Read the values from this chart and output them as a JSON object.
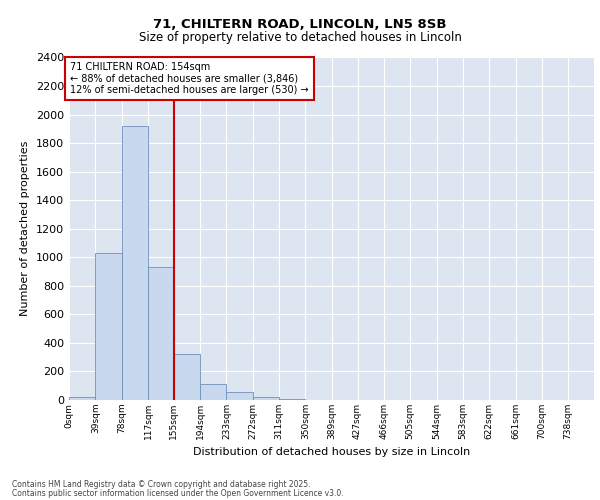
{
  "title1": "71, CHILTERN ROAD, LINCOLN, LN5 8SB",
  "title2": "Size of property relative to detached houses in Lincoln",
  "xlabel": "Distribution of detached houses by size in Lincoln",
  "ylabel": "Number of detached properties",
  "annotation_title": "71 CHILTERN ROAD: 154sqm",
  "annotation_line1": "← 88% of detached houses are smaller (3,846)",
  "annotation_line2": "12% of semi-detached houses are larger (530) →",
  "footer1": "Contains HM Land Registry data © Crown copyright and database right 2025.",
  "footer2": "Contains public sector information licensed under the Open Government Licence v3.0.",
  "property_line_x": 155,
  "bar_edges": [
    0,
    39,
    78,
    117,
    155,
    194,
    233,
    272,
    311,
    350,
    389,
    427,
    466,
    505,
    544,
    583,
    622,
    661,
    700,
    738,
    777
  ],
  "bar_values": [
    20,
    1030,
    1920,
    930,
    320,
    110,
    55,
    20,
    10,
    0,
    0,
    0,
    0,
    0,
    0,
    0,
    0,
    0,
    0,
    0
  ],
  "bar_color": "#c8d8ee",
  "bar_edge_color": "#7090b8",
  "property_line_color": "#cc0000",
  "annotation_box_color": "#cc0000",
  "background_color": "#dde6f0",
  "ylim": [
    0,
    2400
  ],
  "yticks": [
    0,
    200,
    400,
    600,
    800,
    1000,
    1200,
    1400,
    1600,
    1800,
    2000,
    2200,
    2400
  ],
  "xlim": [
    0,
    777
  ],
  "grid_color": "#ffffff",
  "title1_fontsize": 9.5,
  "title2_fontsize": 8.5
}
